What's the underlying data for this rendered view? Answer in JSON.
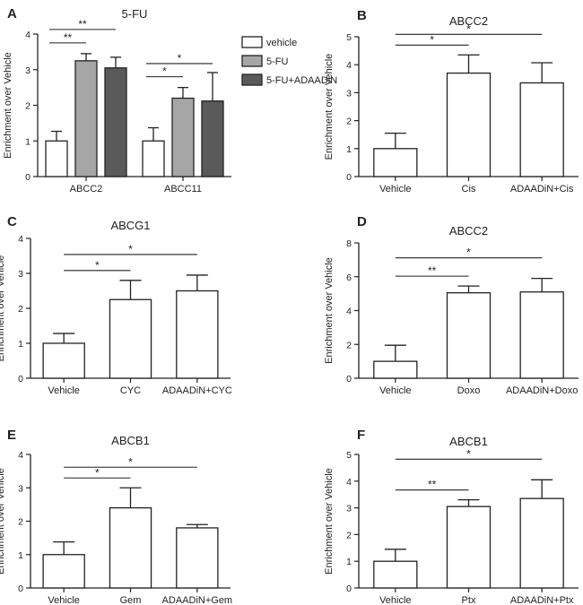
{
  "chart_data": [
    {
      "panel": "A",
      "type": "bar",
      "title": "5-FU",
      "ylabel": "Enrichment over Vehicle",
      "xlabel": "",
      "ylim": [
        0,
        4
      ],
      "yticks": [
        0,
        1,
        2,
        3,
        4
      ],
      "categories": [
        "ABCC2",
        "ABCC11"
      ],
      "series": [
        {
          "name": "vehicle",
          "color": "#ffffff",
          "values": [
            1.0,
            1.0
          ],
          "errors": [
            0.27,
            0.37
          ]
        },
        {
          "name": "5-FU",
          "color": "#a6a6a6",
          "values": [
            3.25,
            2.2
          ],
          "errors": [
            0.2,
            0.3
          ]
        },
        {
          "name": "5-FU+ADAADiN",
          "color": "#5a5a5a",
          "values": [
            3.05,
            2.12
          ],
          "errors": [
            0.3,
            0.8
          ]
        }
      ],
      "legend": [
        "vehicle",
        "5-FU",
        "5-FU+ADAADiN"
      ],
      "significance": [
        {
          "category": 0,
          "from": 0,
          "to": 1,
          "label": "**"
        },
        {
          "category": 0,
          "from": 0,
          "to": 2,
          "label": "**"
        },
        {
          "category": 1,
          "from": 0,
          "to": 1,
          "label": "*"
        },
        {
          "category": 1,
          "from": 0,
          "to": 2,
          "label": "*"
        }
      ]
    },
    {
      "panel": "B",
      "type": "bar",
      "title": "ABCC2",
      "ylabel": "Enrichment over Vehicle",
      "xlabel": "",
      "ylim": [
        0,
        5
      ],
      "yticks": [
        0,
        1,
        2,
        3,
        4,
        5
      ],
      "categories": [
        "Vehicle",
        "Cis",
        "ADAADiN+Cis"
      ],
      "values": [
        1.0,
        3.7,
        3.35
      ],
      "errors": [
        0.55,
        0.65,
        0.72
      ],
      "significance": [
        {
          "from": 0,
          "to": 1,
          "label": "*"
        },
        {
          "from": 0,
          "to": 2,
          "label": "*"
        }
      ]
    },
    {
      "panel": "C",
      "type": "bar",
      "title": "ABCG1",
      "ylabel": "Enrichment over Vehicle",
      "xlabel": "",
      "ylim": [
        0,
        4
      ],
      "yticks": [
        0,
        1,
        2,
        3,
        4
      ],
      "categories": [
        "Vehicle",
        "CYC",
        "ADAADiN+CYC"
      ],
      "values": [
        1.0,
        2.25,
        2.5
      ],
      "errors": [
        0.28,
        0.55,
        0.45
      ],
      "significance": [
        {
          "from": 0,
          "to": 1,
          "label": "*"
        },
        {
          "from": 0,
          "to": 2,
          "label": "*"
        }
      ]
    },
    {
      "panel": "D",
      "type": "bar",
      "title": "ABCC2",
      "ylabel": "Enrichment over Vehicle",
      "xlabel": "",
      "ylim": [
        0,
        8
      ],
      "yticks": [
        0,
        2,
        4,
        6,
        8
      ],
      "categories": [
        "Vehicle",
        "Doxo",
        "ADAADiN+Doxo"
      ],
      "values": [
        1.0,
        5.05,
        5.1
      ],
      "errors": [
        0.95,
        0.4,
        0.8
      ],
      "significance": [
        {
          "from": 0,
          "to": 1,
          "label": "**"
        },
        {
          "from": 0,
          "to": 2,
          "label": "*"
        }
      ]
    },
    {
      "panel": "E",
      "type": "bar",
      "title": "ABCB1",
      "ylabel": "Enrichment over Vehicle",
      "xlabel": "",
      "ylim": [
        0,
        4
      ],
      "yticks": [
        0,
        1,
        2,
        3,
        4
      ],
      "categories": [
        "Vehicle",
        "Gem",
        "ADAADiN+Gem"
      ],
      "values": [
        1.0,
        2.4,
        1.8
      ],
      "errors": [
        0.38,
        0.6,
        0.1
      ],
      "significance": [
        {
          "from": 0,
          "to": 1,
          "label": "*"
        },
        {
          "from": 0,
          "to": 2,
          "label": "*"
        }
      ]
    },
    {
      "panel": "F",
      "type": "bar",
      "title": "ABCB1",
      "ylabel": "Enrichment over Vehicle",
      "xlabel": "",
      "ylim": [
        0,
        5
      ],
      "yticks": [
        0,
        1,
        2,
        3,
        4,
        5
      ],
      "categories": [
        "Vehicle",
        "Ptx",
        "ADAADiN+Ptx"
      ],
      "values": [
        1.0,
        3.05,
        3.35
      ],
      "errors": [
        0.45,
        0.25,
        0.7
      ],
      "significance": [
        {
          "from": 0,
          "to": 1,
          "label": "**"
        },
        {
          "from": 0,
          "to": 2,
          "label": "*"
        }
      ]
    }
  ]
}
